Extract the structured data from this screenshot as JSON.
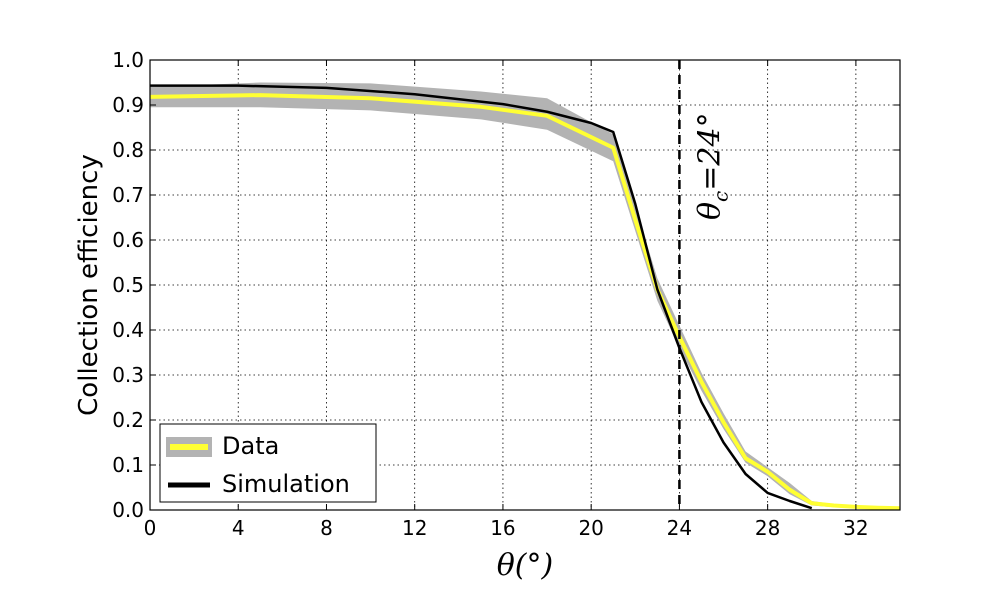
{
  "chart_data": {
    "type": "line",
    "title": "",
    "xlabel": "θ(°)",
    "ylabel": "Collection efficiency",
    "xlim": [
      0,
      34
    ],
    "ylim": [
      0,
      1.0
    ],
    "x_ticks": [
      0,
      4,
      8,
      12,
      16,
      20,
      24,
      28,
      32
    ],
    "x_tick_labels": [
      "0",
      "4",
      "8",
      "12",
      "16",
      "20",
      "24",
      "28",
      "32"
    ],
    "y_ticks": [
      0.0,
      0.1,
      0.2,
      0.3,
      0.4,
      0.5,
      0.6,
      0.7,
      0.8,
      0.9,
      1.0
    ],
    "y_tick_labels": [
      "0.0",
      "0.1",
      "0.2",
      "0.3",
      "0.4",
      "0.5",
      "0.6",
      "0.7",
      "0.8",
      "0.9",
      "1.0"
    ],
    "grid": true,
    "legend_position": "bottom-left",
    "series": [
      {
        "name": "Data",
        "style": "band",
        "x": [
          0,
          5,
          10,
          15,
          18,
          21,
          22,
          23,
          24,
          25,
          26,
          27,
          28,
          29,
          30,
          31,
          32,
          33,
          34
        ],
        "values": [
          0.918,
          0.922,
          0.915,
          0.896,
          0.876,
          0.805,
          0.645,
          0.49,
          0.385,
          0.285,
          0.195,
          0.115,
          0.085,
          0.045,
          0.015,
          0.01,
          0.007,
          0.005,
          0.004
        ],
        "lower": [
          0.895,
          0.895,
          0.888,
          0.868,
          0.845,
          0.775,
          0.62,
          0.465,
          0.36,
          0.265,
          0.18,
          0.105,
          0.075,
          0.035,
          0.01,
          0.006,
          0.004,
          0.002,
          0.001
        ],
        "upper": [
          0.94,
          0.95,
          0.948,
          0.93,
          0.915,
          0.835,
          0.675,
          0.515,
          0.41,
          0.305,
          0.215,
          0.13,
          0.095,
          0.06,
          0.02,
          0.013,
          0.01,
          0.008,
          0.006
        ]
      },
      {
        "name": "Simulation",
        "style": "line",
        "x": [
          0,
          4,
          8,
          12,
          16,
          18,
          20,
          21,
          22,
          23,
          24,
          25,
          26,
          27,
          28,
          29,
          30
        ],
        "values": [
          0.943,
          0.943,
          0.938,
          0.924,
          0.902,
          0.885,
          0.86,
          0.84,
          0.68,
          0.49,
          0.36,
          0.24,
          0.15,
          0.08,
          0.038,
          0.02,
          0.004
        ]
      }
    ],
    "reference_lines": [
      {
        "x": 24,
        "label_prefix": "θ",
        "label_sub": "c",
        "label_suffix": "=24°"
      }
    ],
    "colors": {
      "band": "#b3b3b3",
      "data_line": "#ffff33",
      "simulation": "#000000"
    }
  }
}
